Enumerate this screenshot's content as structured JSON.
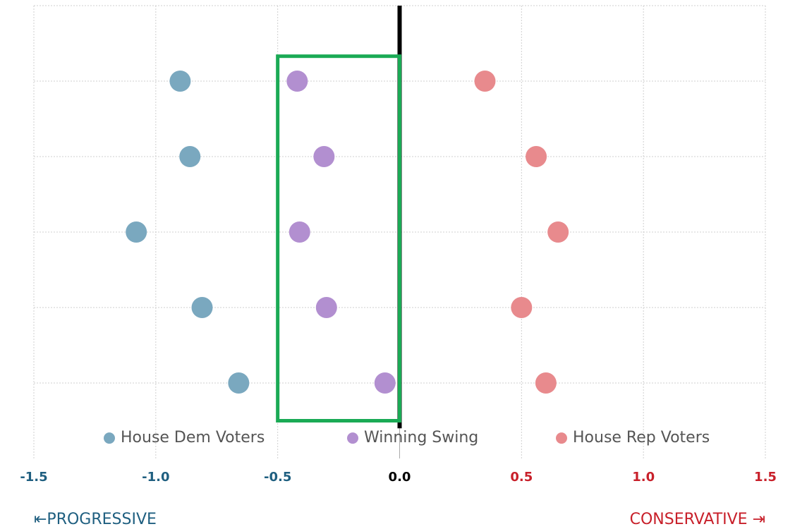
{
  "chart_data": {
    "type": "dot",
    "categories": [
      null,
      null,
      null,
      null,
      null
    ],
    "series": [
      {
        "name": "House Dem Voters",
        "color": "#7aa8bf",
        "values": [
          -0.9,
          -0.86,
          -1.08,
          -0.81,
          -0.66
        ]
      },
      {
        "name": "Winning Swing",
        "color": "#b28fd0",
        "values": [
          -0.42,
          -0.31,
          -0.41,
          -0.3,
          -0.06
        ]
      },
      {
        "name": "House Rep Voters",
        "color": "#e88a8d",
        "values": [
          0.35,
          0.56,
          0.65,
          0.5,
          0.6
        ]
      }
    ],
    "xlim": [
      -1.5,
      1.5
    ],
    "xticks": [
      -1.5,
      {
        "value": -1,
        "label": "-1.0"
      },
      -0.5,
      {
        "value": 0,
        "label": "0.0"
      },
      0.5,
      {
        "value": 1,
        "label": "1.0"
      },
      1.5
    ],
    "highlight_range": [
      -0.5,
      0
    ],
    "highlight_color": "#1aaa55",
    "grid": true,
    "legend": "bottom",
    "annotations": [
      "⇤PROGRESSIVE",
      "CONSERVATIVE ⇥"
    ]
  }
}
